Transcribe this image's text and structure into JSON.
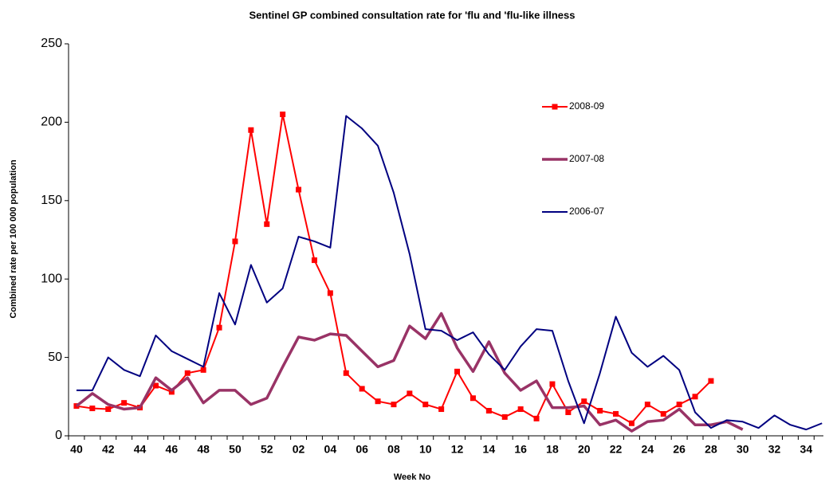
{
  "chart_data": {
    "type": "line",
    "title": "Sentinel GP combined consultation rate for 'flu and 'flu-like illness",
    "x_label": "Week No",
    "y_label": "Combined rate per 100 000 population",
    "categories": [
      "40",
      null,
      "42",
      null,
      "44",
      null,
      "46",
      null,
      "48",
      null,
      "50",
      null,
      "52",
      null,
      "02",
      null,
      "04",
      null,
      "06",
      null,
      "08",
      null,
      "10",
      null,
      "12",
      null,
      "14",
      null,
      "16",
      null,
      "18",
      null,
      "20",
      null,
      "22",
      null,
      "24",
      null,
      "26",
      null,
      "28",
      null,
      "30",
      null,
      "32",
      null,
      "34",
      null
    ],
    "ylim": [
      0,
      250
    ],
    "yticks": [
      0,
      50,
      100,
      150,
      200,
      250
    ],
    "grid": false,
    "series": [
      {
        "name": "2008-09",
        "color": "#ff0000",
        "marker": "square",
        "values": [
          19,
          17.5,
          17,
          21,
          18,
          32,
          28,
          40,
          42,
          69,
          124,
          195,
          135,
          205,
          157,
          112,
          91,
          40,
          30,
          22,
          20,
          27,
          20,
          17,
          41,
          24,
          16,
          12,
          17,
          11,
          33,
          15,
          22,
          16,
          14,
          8,
          20,
          14,
          20,
          25,
          35,
          null,
          null,
          null,
          null,
          null,
          null,
          null
        ]
      },
      {
        "name": "2007-08",
        "color": "#993366",
        "marker": "none",
        "values": [
          19,
          27,
          20,
          17,
          18,
          37,
          29,
          37,
          21,
          29,
          29,
          20,
          24,
          44,
          63,
          61,
          65,
          64,
          54,
          44,
          48,
          70,
          62,
          78,
          56,
          41,
          60,
          40,
          29,
          35,
          18,
          18,
          19,
          7,
          10,
          3,
          9,
          10,
          17,
          7,
          7,
          9,
          4,
          null,
          null,
          null,
          null,
          null
        ]
      },
      {
        "name": "2006-07",
        "color": "#000080",
        "marker": "none",
        "values": [
          29,
          29,
          50,
          42,
          38,
          64,
          54,
          49,
          44,
          91,
          71,
          109,
          85,
          94,
          127,
          124,
          120,
          204,
          196,
          185,
          155,
          116,
          68,
          67,
          61,
          66,
          52,
          42,
          57,
          68,
          67,
          35,
          8,
          40,
          76,
          53,
          44,
          51,
          42,
          15,
          5,
          10,
          9,
          5,
          13,
          7,
          4,
          8
        ]
      }
    ]
  }
}
